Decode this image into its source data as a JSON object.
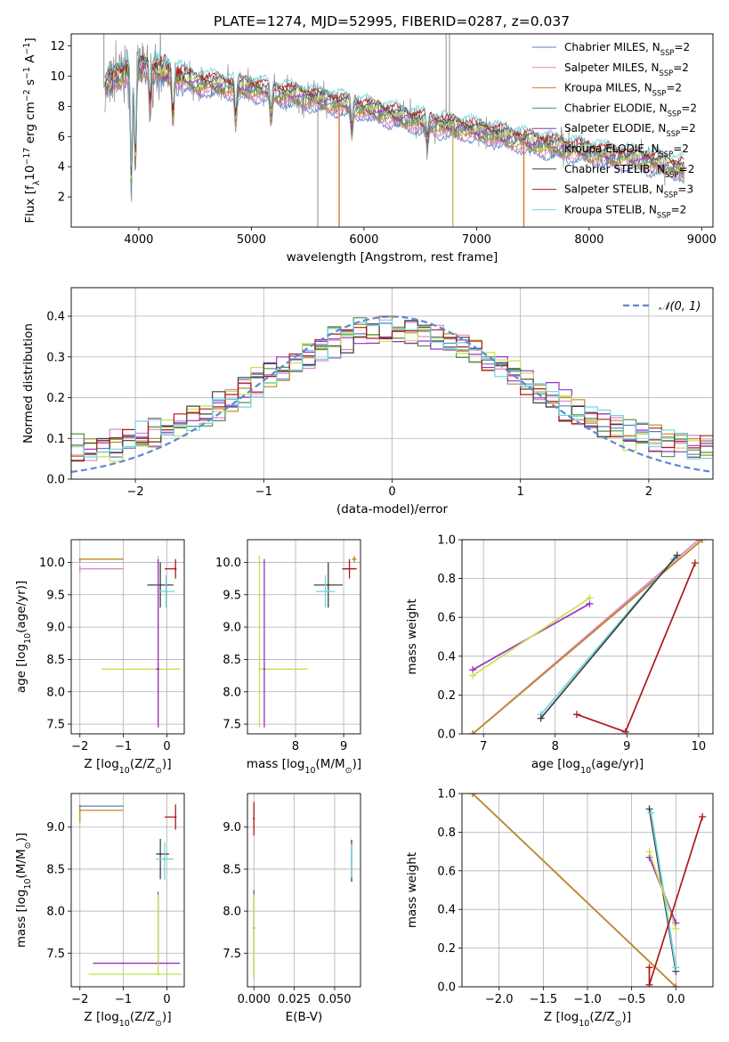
{
  "title": "PLATE=1274, MJD=52995, FIBERID=0287, z=0.037",
  "models": [
    {
      "name": "Chabrier MILES, N<sub>SSP</sub>=2",
      "color": "#5b7fc4"
    },
    {
      "name": "Salpeter MILES, N<sub>SSP</sub>=2",
      "color": "#e086c9"
    },
    {
      "name": "Kroupa MILES, N<sub>SSP</sub>=2",
      "color": "#c08a1f"
    },
    {
      "name": "Chabrier ELODIE, N<sub>SSP</sub>=2",
      "color": "#4f8f4f"
    },
    {
      "name": "Salpeter ELODIE, N<sub>SSP</sub>=2",
      "color": "#9b30c0"
    },
    {
      "name": "Kroupa ELODIE, N<sub>SSP</sub>=2",
      "color": "#c7e04f"
    },
    {
      "name": "Chabrier STELIB, N<sub>SSP</sub>=2",
      "color": "#404040"
    },
    {
      "name": "Salpeter STELIB, N<sub>SSP</sub>=3",
      "color": "#b01818"
    },
    {
      "name": "Kroupa STELIB, N<sub>SSP</sub>=2",
      "color": "#6fd6e0"
    }
  ],
  "chart_data": [
    {
      "type": "line",
      "id": "spectrum",
      "xlabel": "wavelength [Angstrom, rest frame]",
      "ylabel": "Flux [f<sub>λ</sub>10<sup>−17</sup> erg cm<sup>−2</sup> s<sup>−1</sup> A<sup>−1</sup>]",
      "xlim": [
        3400,
        9100
      ],
      "ylim": [
        0,
        12.8
      ],
      "xticks": [
        4000,
        5000,
        6000,
        7000,
        8000,
        9000
      ],
      "yticks": [
        2,
        4,
        6,
        8,
        10,
        12
      ],
      "continuum": [
        [
          3700,
          9.3
        ],
        [
          3900,
          10.5
        ],
        [
          4100,
          10.6
        ],
        [
          4500,
          9.6
        ],
        [
          5000,
          9.2
        ],
        [
          5500,
          8.6
        ],
        [
          6000,
          7.9
        ],
        [
          6500,
          7.0
        ],
        [
          7000,
          6.4
        ],
        [
          7500,
          5.6
        ],
        [
          8000,
          5.0
        ],
        [
          8500,
          4.4
        ],
        [
          8850,
          3.9
        ]
      ],
      "absorptions": [
        {
          "x": 3934,
          "depth": 0.7
        },
        {
          "x": 3969,
          "depth": 0.6
        },
        {
          "x": 4101,
          "depth": 0.25
        },
        {
          "x": 4304,
          "depth": 0.3
        },
        {
          "x": 4861,
          "depth": 0.25
        },
        {
          "x": 5175,
          "depth": 0.2
        },
        {
          "x": 5893,
          "depth": 0.2
        },
        {
          "x": 6563,
          "depth": 0.2
        }
      ],
      "model_drops": [
        {
          "x": 5780,
          "color": "#e06a2c"
        },
        {
          "x": 6790,
          "color": "#c7b05f"
        },
        {
          "x": 7420,
          "color": "#e06a2c"
        }
      ],
      "data_spikes": [
        {
          "x": 3690,
          "top": 12.8
        },
        {
          "x": 5590,
          "bottom": 0
        },
        {
          "x": 6730,
          "top": 12.8
        },
        {
          "x": 6760,
          "top": 12.8
        }
      ]
    },
    {
      "type": "line",
      "id": "residuals",
      "xlabel": "(data-model)/error",
      "ylabel": "Normed distribution",
      "xlim": [
        -2.5,
        2.5
      ],
      "ylim": [
        0,
        0.47
      ],
      "xticks": [
        -2,
        -1,
        0,
        1,
        2
      ],
      "yticks": [
        0.0,
        0.1,
        0.2,
        0.3,
        0.4
      ],
      "legend": "𝒩(0, 1)",
      "gauss_color": "#5f87d0",
      "bin_width": 0.1
    },
    {
      "type": "scatter",
      "id": "age-vs-Z",
      "xlabel": "Z [log<sub>10</sub>(Z/Z<sub>⊙</sub>)]",
      "ylabel": "age  [log<sub>10</sub>(age/yr)]",
      "xlim": [
        -2.2,
        0.4
      ],
      "ylim": [
        7.35,
        10.35
      ],
      "xticks": [
        -2,
        -1,
        0
      ],
      "yticks": [
        7.5,
        8.0,
        8.5,
        9.0,
        9.5,
        10.0
      ],
      "points": [
        {
          "m": 6,
          "x": -0.15,
          "y": 9.65,
          "xerr": [
            0.3,
            0.3
          ],
          "yerr": [
            0.35,
            0.35
          ]
        },
        {
          "m": 8,
          "x": -0.02,
          "y": 9.55,
          "xerr": [
            0.2,
            0.2
          ],
          "yerr": [
            0.25,
            0.25
          ]
        },
        {
          "m": 7,
          "x": 0.2,
          "y": 9.9,
          "xerr": [
            0.25,
            0.0
          ],
          "yerr": [
            0.15,
            0.15
          ]
        },
        {
          "m": 2,
          "x": -2.0,
          "y": 10.05,
          "xerr": [
            0.0,
            1.0
          ],
          "yerr": [
            0.05,
            0.0
          ]
        },
        {
          "m": 1,
          "x": -2.0,
          "y": 9.9,
          "xerr": [
            0.0,
            1.0
          ],
          "yerr": [
            0.05,
            0.05
          ]
        },
        {
          "m": 5,
          "x": -0.2,
          "y": 8.35,
          "xerr": [
            1.3,
            0.5
          ],
          "yerr": [
            0.9,
            1.75
          ]
        },
        {
          "m": 4,
          "x": -0.2,
          "y": 8.35,
          "xerr": [
            0.05,
            0.0
          ],
          "yerr": [
            0.9,
            1.7
          ]
        }
      ]
    },
    {
      "type": "scatter",
      "id": "age-vs-mass",
      "xlabel": "mass [log<sub>10</sub>(M/M<sub>⊙</sub>)]",
      "ylabel": "",
      "xlim": [
        7.0,
        9.35
      ],
      "ylim": [
        7.35,
        10.35
      ],
      "xticks": [
        8,
        9
      ],
      "yticks": [
        7.5,
        8.0,
        8.5,
        9.0,
        9.5,
        10.0
      ],
      "points": [
        {
          "m": 6,
          "x": 8.68,
          "y": 9.65,
          "xerr": [
            0.3,
            0.3
          ],
          "yerr": [
            0.35,
            0.35
          ]
        },
        {
          "m": 8,
          "x": 8.62,
          "y": 9.55,
          "xerr": [
            0.2,
            0.2
          ],
          "yerr": [
            0.25,
            0.25
          ]
        },
        {
          "m": 7,
          "x": 9.12,
          "y": 9.9,
          "xerr": [
            0.15,
            0.15
          ],
          "yerr": [
            0.15,
            0.15
          ]
        },
        {
          "m": 2,
          "x": 9.22,
          "y": 10.05,
          "xerr": [
            0.05,
            0.05
          ],
          "yerr": [
            0.05,
            0.05
          ]
        },
        {
          "m": 5,
          "x": 7.25,
          "y": 8.35,
          "xerr": [
            0.0,
            1.0
          ],
          "yerr": [
            0.9,
            1.75
          ]
        },
        {
          "m": 4,
          "x": 7.35,
          "y": 8.35,
          "xerr": [
            0.0,
            0.0
          ],
          "yerr": [
            0.9,
            1.7
          ]
        }
      ]
    },
    {
      "type": "line",
      "id": "weight-vs-age",
      "xlabel": "age  [log<sub>10</sub>(age/yr)]",
      "ylabel": "mass weight",
      "xlim": [
        6.7,
        10.2
      ],
      "ylim": [
        0,
        1
      ],
      "xticks": [
        7,
        8,
        9,
        10
      ],
      "yticks": [
        0.0,
        0.2,
        0.4,
        0.6,
        0.8,
        1.0
      ],
      "series": [
        {
          "m": 0,
          "x": [
            6.85,
            10.05
          ],
          "y": [
            0.0,
            1.0
          ]
        },
        {
          "m": 1,
          "x": [
            6.85,
            10.0
          ],
          "y": [
            0.0,
            1.0
          ]
        },
        {
          "m": 2,
          "x": [
            6.85,
            10.05
          ],
          "y": [
            0.0,
            1.0
          ]
        },
        {
          "m": 4,
          "x": [
            6.85,
            8.48
          ],
          "y": [
            0.33,
            0.67
          ]
        },
        {
          "m": 5,
          "x": [
            6.85,
            8.48
          ],
          "y": [
            0.3,
            0.7
          ]
        },
        {
          "m": 8,
          "x": [
            7.8,
            9.65
          ],
          "y": [
            0.1,
            0.9
          ]
        },
        {
          "m": 6,
          "x": [
            7.8,
            9.7
          ],
          "y": [
            0.08,
            0.92
          ]
        },
        {
          "m": 7,
          "x": [
            8.3,
            8.98,
            9.95
          ],
          "y": [
            0.1,
            0.01,
            0.88
          ]
        }
      ]
    },
    {
      "type": "scatter",
      "id": "mass-vs-Z",
      "xlabel": "Z [log<sub>10</sub>(Z/Z<sub>⊙</sub>)]",
      "ylabel": "mass [log<sub>10</sub>(M/M<sub>⊙</sub>)]",
      "xlim": [
        -2.2,
        0.4
      ],
      "ylim": [
        7.1,
        9.4
      ],
      "xticks": [
        -2,
        -1,
        0
      ],
      "yticks": [
        7.5,
        8.0,
        8.5,
        9.0
      ],
      "points": [
        {
          "m": 0,
          "x": -2.0,
          "y": 9.25,
          "xerr": [
            0.0,
            1.0
          ],
          "yerr": [
            0.0,
            0.0
          ]
        },
        {
          "m": 2,
          "x": -2.0,
          "y": 9.2,
          "xerr": [
            0.0,
            1.0
          ],
          "yerr": [
            0.15,
            0.05
          ]
        },
        {
          "m": 7,
          "x": 0.2,
          "y": 9.12,
          "xerr": [
            0.25,
            0.0
          ],
          "yerr": [
            0.15,
            0.15
          ]
        },
        {
          "m": 6,
          "x": -0.15,
          "y": 8.68,
          "xerr": [
            0.1,
            0.2
          ],
          "yerr": [
            0.3,
            0.18
          ]
        },
        {
          "m": 8,
          "x": -0.05,
          "y": 8.62,
          "xerr": [
            0.2,
            0.2
          ],
          "yerr": [
            0.25,
            0.2
          ]
        },
        {
          "m": 4,
          "x": -0.2,
          "y": 7.38,
          "xerr": [
            1.5,
            0.5
          ],
          "yerr": [
            0.0,
            0.85
          ]
        },
        {
          "m": 5,
          "x": -0.2,
          "y": 7.25,
          "xerr": [
            1.6,
            0.55
          ],
          "yerr": [
            0.0,
            0.95
          ]
        }
      ]
    },
    {
      "type": "scatter",
      "id": "mass-vs-EBV",
      "xlabel": "E(B-V)",
      "ylabel": "",
      "xlim": [
        -0.004,
        0.066
      ],
      "ylim": [
        7.1,
        9.4
      ],
      "xticks": [
        0.0,
        0.025,
        0.05
      ],
      "tick_labels": [
        "0.000",
        "0.025",
        "0.050"
      ],
      "yticks": [
        7.5,
        8.0,
        8.5,
        9.0
      ],
      "points": [
        {
          "m": 7,
          "x": 0.0,
          "y": 9.1,
          "xerr": [
            0,
            0
          ],
          "yerr": [
            0.2,
            0.2
          ]
        },
        {
          "m": 4,
          "x": 0.0,
          "y": 7.8,
          "xerr": [
            0,
            0
          ],
          "yerr": [
            0.6,
            0.45
          ]
        },
        {
          "m": 5,
          "x": 0.0,
          "y": 7.75,
          "xerr": [
            0,
            0
          ],
          "yerr": [
            0.55,
            0.45
          ]
        },
        {
          "m": 6,
          "x": 0.0605,
          "y": 8.6,
          "xerr": [
            0,
            0
          ],
          "yerr": [
            0.25,
            0.25
          ]
        },
        {
          "m": 8,
          "x": 0.0605,
          "y": 8.6,
          "xerr": [
            0,
            0
          ],
          "yerr": [
            0.2,
            0.2
          ]
        }
      ]
    },
    {
      "type": "line",
      "id": "weight-vs-Z",
      "xlabel": "Z [log<sub>10</sub>(Z/Z<sub>⊙</sub>)]",
      "ylabel": "mass weight",
      "xlim": [
        -2.42,
        0.42
      ],
      "ylim": [
        0,
        1
      ],
      "xticks": [
        -2.0,
        -1.5,
        -1.0,
        -0.5,
        0.0
      ],
      "yticks": [
        0.0,
        0.2,
        0.4,
        0.6,
        0.8,
        1.0
      ],
      "series": [
        {
          "m": 0,
          "x": [
            -2.3,
            0.0
          ],
          "y": [
            1.0,
            0.0
          ]
        },
        {
          "m": 2,
          "x": [
            -2.3,
            0.0
          ],
          "y": [
            1.0,
            0.0
          ]
        },
        {
          "m": 6,
          "x": [
            -0.3,
            0.0
          ],
          "y": [
            0.92,
            0.08
          ]
        },
        {
          "m": 8,
          "x": [
            -0.28,
            0.0
          ],
          "y": [
            0.9,
            0.1
          ]
        },
        {
          "m": 4,
          "x": [
            -0.3,
            0.0
          ],
          "y": [
            0.67,
            0.33
          ]
        },
        {
          "m": 5,
          "x": [
            -0.3,
            0.0
          ],
          "y": [
            0.7,
            0.3
          ]
        },
        {
          "m": 7,
          "x": [
            -0.3,
            -0.3,
            0.3
          ],
          "y": [
            0.1,
            0.01,
            0.88
          ]
        }
      ]
    }
  ]
}
